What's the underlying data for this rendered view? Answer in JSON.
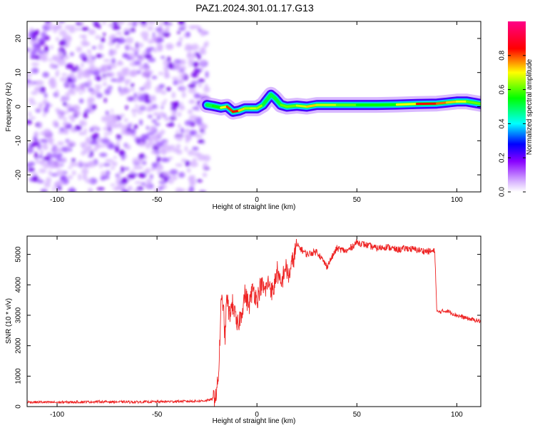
{
  "figure_title": "PAZ1.2024.301.01.17.G13",
  "chart_data": [
    {
      "type": "heatmap",
      "title": "PAZ1.2024.301.01.17.G13",
      "xlabel": "Height of straight line (km)",
      "ylabel": "Frequency (Hz)",
      "xlim": [
        -115,
        112
      ],
      "ylim": [
        -25,
        25
      ],
      "xticks": [
        -100,
        -50,
        0,
        50,
        100
      ],
      "yticks": [
        -20,
        -10,
        0,
        10,
        20
      ],
      "xtick_labels": [
        "-100",
        "-50",
        "0",
        "50",
        "100"
      ],
      "ytick_labels": [
        "-20",
        "-10",
        "0",
        "10",
        "20"
      ],
      "colorbar": {
        "label": "Normalized spectral amplitude",
        "range": [
          0,
          1
        ],
        "ticks": [
          0.0,
          0.2,
          0.4,
          0.6,
          0.8
        ],
        "tick_labels": [
          "0.0",
          "0.2",
          "0.4",
          "0.6",
          "0.8"
        ],
        "colormap": [
          "#ffffff",
          "#d8b4ff",
          "#8800ff",
          "#0000ff",
          "#00ffff",
          "#00ff00",
          "#ffff00",
          "#ff0000",
          "#ff00aa"
        ]
      },
      "noise_region_x": [
        -115,
        -25
      ],
      "frequency_track": {
        "x": [
          -25,
          -22,
          -18,
          -15,
          -12,
          -9,
          -6,
          -3,
          0,
          3,
          5,
          7,
          9,
          12,
          15,
          20,
          25,
          30,
          40,
          50,
          60,
          70,
          80,
          90,
          95,
          100,
          105,
          112
        ],
        "y": [
          0.5,
          0.2,
          -0.3,
          0.0,
          -1.5,
          -1.2,
          -0.5,
          -0.5,
          -0.5,
          0.5,
          2.0,
          3.5,
          2.5,
          0.5,
          0.0,
          0.3,
          0.0,
          0.5,
          0.5,
          0.5,
          0.5,
          0.6,
          0.8,
          0.9,
          1.2,
          1.5,
          1.5,
          0.8
        ],
        "amplitude": [
          0.35,
          0.45,
          0.6,
          0.7,
          0.8,
          0.75,
          0.6,
          0.6,
          0.65,
          0.55,
          0.45,
          0.4,
          0.45,
          0.55,
          0.6,
          0.55,
          0.7,
          0.65,
          0.6,
          0.55,
          0.5,
          0.55,
          0.75,
          0.8,
          0.65,
          0.7,
          0.6,
          0.55
        ]
      }
    },
    {
      "type": "line",
      "xlabel": "Height of straight line (km)",
      "ylabel": "SNR (10 * v/v)",
      "xlim": [
        -115,
        112
      ],
      "ylim": [
        0,
        5600
      ],
      "xticks": [
        -100,
        -50,
        0,
        50,
        100
      ],
      "yticks": [
        0,
        1000,
        2000,
        3000,
        4000,
        5000
      ],
      "xtick_labels": [
        "-100",
        "-50",
        "0",
        "50",
        "100"
      ],
      "ytick_labels": [
        "0",
        "1000",
        "2000",
        "3000",
        "4000",
        "5000"
      ],
      "series": [
        {
          "color": "#ee2222",
          "x": [
            -115,
            -100,
            -80,
            -60,
            -40,
            -30,
            -25,
            -22,
            -20,
            -19,
            -18,
            -17,
            -16,
            -15,
            -14,
            -12,
            -10,
            -8,
            -6,
            -4,
            -2,
            0,
            2,
            4,
            6,
            8,
            10,
            12,
            14,
            16,
            18,
            20,
            25,
            30,
            35,
            40,
            45,
            50,
            55,
            60,
            65,
            70,
            75,
            80,
            85,
            89,
            90,
            95,
            100,
            105,
            112
          ],
          "y": [
            150,
            140,
            160,
            150,
            170,
            180,
            200,
            250,
            500,
            1300,
            3300,
            3500,
            2200,
            3700,
            3000,
            3400,
            2600,
            3000,
            3700,
            3300,
            3900,
            3500,
            4000,
            3800,
            4100,
            3700,
            4500,
            3900,
            4600,
            4300,
            4800,
            5300,
            5000,
            5100,
            4600,
            5200,
            5100,
            5400,
            5300,
            5200,
            5250,
            5150,
            5200,
            5150,
            5100,
            5100,
            3100,
            3150,
            3000,
            2900,
            2800
          ]
        }
      ]
    }
  ]
}
